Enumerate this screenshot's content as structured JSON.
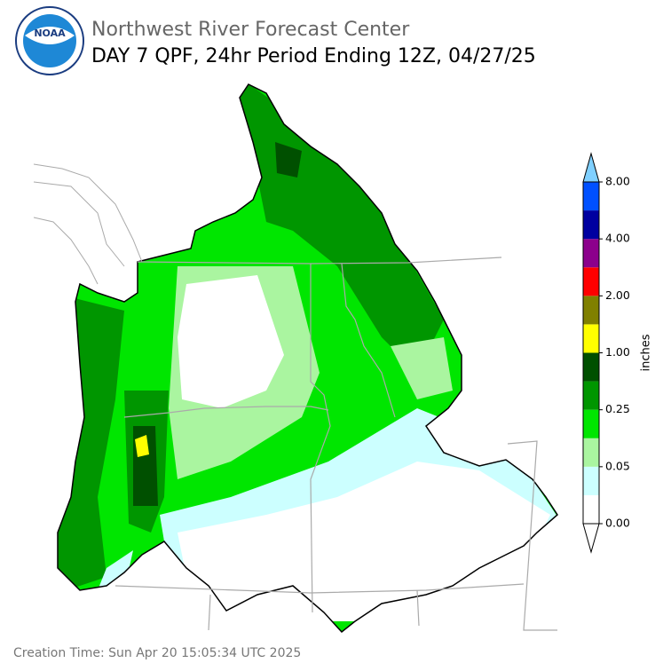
{
  "header": {
    "title": "Northwest River Forecast Center",
    "subtitle": "DAY 7 QPF, 24hr Period Ending 12Z, 04/27/25",
    "logo_text": "NOAA"
  },
  "colorbar": {
    "label": "inches",
    "colors": [
      "#ffffff",
      "#ccffff",
      "#aaf5a0",
      "#00e600",
      "#009600",
      "#005000",
      "#ffff00",
      "#808000",
      "#ff0000",
      "#8c008c",
      "#0000a0",
      "#0050ff"
    ],
    "over_color": "#80d0ff",
    "ticks": [
      {
        "value": 0,
        "label": "0.00"
      },
      {
        "value": 0.05,
        "label": "0.05"
      },
      {
        "value": 0.25,
        "label": "0.25"
      },
      {
        "value": 1,
        "label": "1.00"
      },
      {
        "value": 2,
        "label": "2.00"
      },
      {
        "value": 4,
        "label": "4.00"
      },
      {
        "value": 8,
        "label": "8.00"
      }
    ]
  },
  "footer": {
    "creation_time": "Creation Time: Sun Apr 20 15:05:34 UTC 2025"
  }
}
